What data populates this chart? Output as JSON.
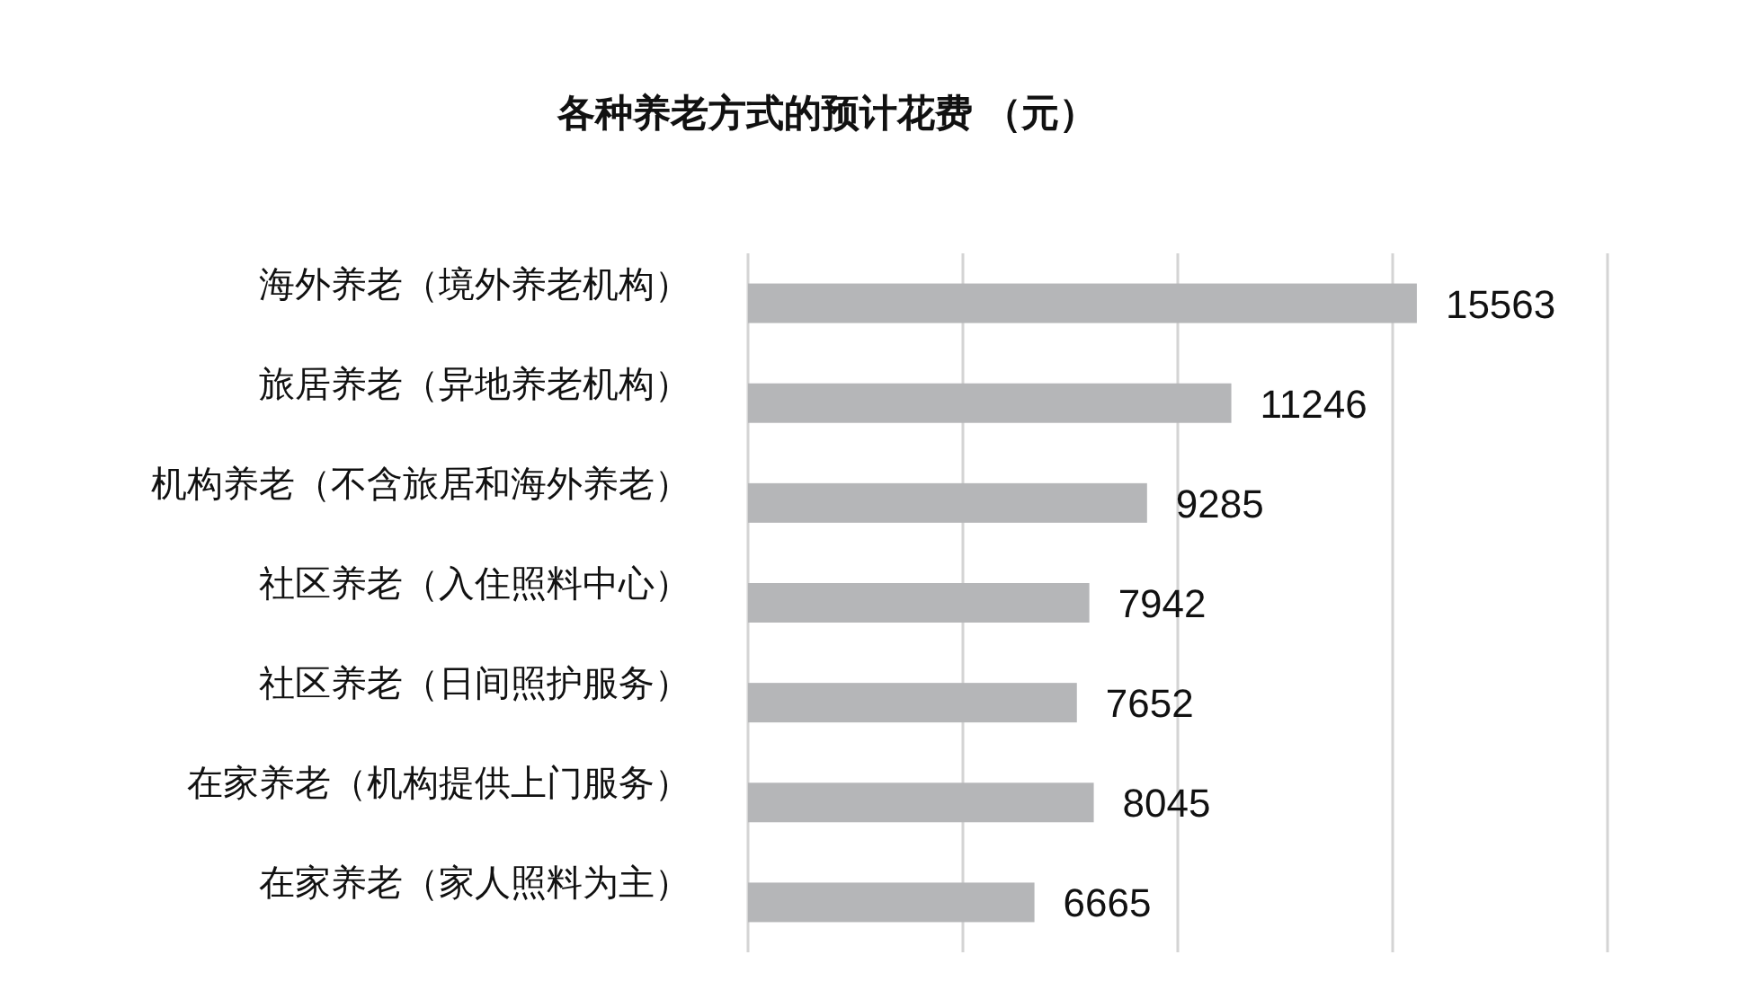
{
  "chart_data": {
    "type": "bar",
    "orientation": "horizontal",
    "title": "各种养老方式的预计花费 （元）",
    "categories": [
      "海外养老（境外养老机构）",
      "旅居养老（异地养老机构）",
      "机构养老（不含旅居和海外养老）",
      "社区养老（入住照料中心）",
      "社区养老（日间照护服务）",
      "在家养老（机构提供上门服务）",
      "在家养老（家人照料为主）"
    ],
    "values": [
      15563,
      11246,
      9285,
      7942,
      7652,
      8045,
      6665
    ],
    "color": "#b5b6b8",
    "xlim": [
      0,
      20000
    ],
    "xticks": [
      {
        "value": 0,
        "label": null
      },
      {
        "value": 5000,
        "label": null
      },
      {
        "value": 10000,
        "label": null
      },
      {
        "value": 15000,
        "label": null
      },
      {
        "value": 20000,
        "label": null
      }
    ],
    "grid": "x",
    "data_labels": true,
    "tick_labels": "y"
  }
}
